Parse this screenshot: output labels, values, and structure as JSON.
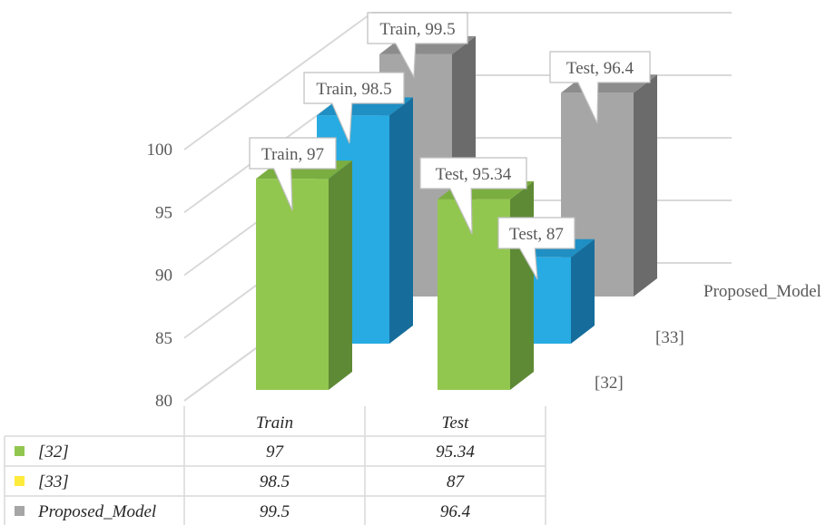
{
  "chart_data": {
    "type": "bar",
    "subtype": "3d-clustered-column-with-data-table",
    "categories": [
      "Train",
      "Test"
    ],
    "series": [
      {
        "name": "[32]",
        "values": [
          97,
          95.34
        ],
        "color": "#92C74F",
        "side_color": "#5E8A35",
        "top_color": "#7BAE40"
      },
      {
        "name": "[33]",
        "values": [
          98.5,
          87
        ],
        "color": "#27ABE2",
        "side_color": "#166D9B",
        "top_color": "#1F8FC4"
      },
      {
        "name": "Proposed_Model",
        "values": [
          99.5,
          96.4
        ],
        "color": "#A6A6A6",
        "side_color": "#6B6B6B",
        "top_color": "#8C8C8C"
      }
    ],
    "data_labels": [
      "Train, 97",
      "Test, 95.34",
      "Train, 98.5",
      "Test, 87",
      "Train, 99.5",
      "Test, 96.4"
    ],
    "yticks": [
      80,
      85,
      90,
      95,
      100
    ],
    "ylim": [
      80,
      100
    ],
    "depth_axis_labels": [
      "[32]",
      "[33]",
      "Proposed_Model"
    ],
    "legend_markers": [
      "#92C74F",
      "#FFEB3B",
      "#A6A6A6"
    ],
    "table": {
      "headers": [
        "Train",
        "Test"
      ],
      "rows": [
        {
          "label": "[32]",
          "values": [
            "97",
            "95.34"
          ]
        },
        {
          "label": "[33]",
          "values": [
            "98.5",
            "87"
          ]
        },
        {
          "label": "Proposed_Model",
          "values": [
            "99.5",
            "96.4"
          ]
        }
      ]
    },
    "grid": true
  }
}
